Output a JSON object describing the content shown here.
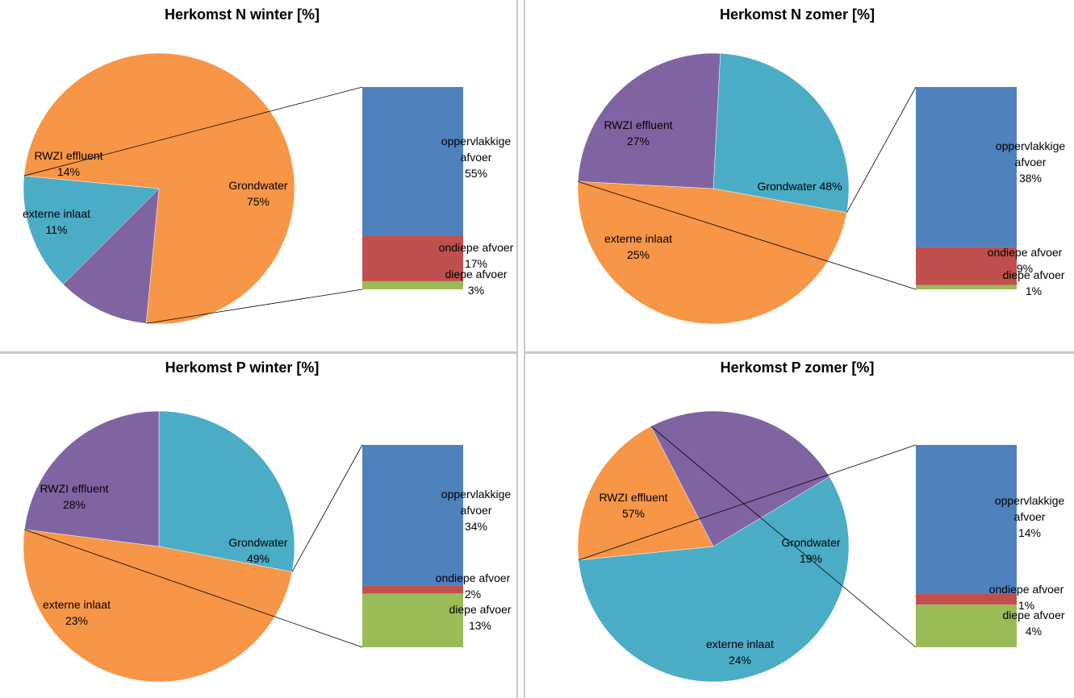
{
  "chart_data": [
    {
      "type": "bar-of-pie",
      "title": "Herkomst N winter [%]",
      "pie": [
        {
          "label": "RWZI effluent",
          "value": 14,
          "color": "#4bacc6"
        },
        {
          "label": "Grondwater",
          "value": 75,
          "color": "#f79646"
        },
        {
          "label": "externe inlaat",
          "value": 11,
          "color": "#8064a2"
        }
      ],
      "pie_label_style": [
        "two-line",
        "two-line",
        "two-line"
      ],
      "bar": [
        {
          "label": "oppervlakkige afvoer",
          "value": 55,
          "color": "#4f81bd"
        },
        {
          "label": "ondiepe afvoer",
          "value": 17,
          "color": "#c0504d"
        },
        {
          "label": "diepe afvoer",
          "value": 3,
          "color": "#9bbb59"
        }
      ],
      "bar_source": "Grondwater"
    },
    {
      "type": "bar-of-pie",
      "title": "Herkomst N zomer [%]",
      "pie": [
        {
          "label": "RWZI effluent",
          "value": 27,
          "color": "#4bacc6"
        },
        {
          "label": "Grondwater",
          "value": 48,
          "color": "#f79646"
        },
        {
          "label": "externe inlaat",
          "value": 25,
          "color": "#8064a2"
        }
      ],
      "pie_label_style": [
        "two-line",
        "one-line",
        "two-line"
      ],
      "bar": [
        {
          "label": "oppervlakkige afvoer",
          "value": 38,
          "color": "#4f81bd"
        },
        {
          "label": "ondiepe afvoer",
          "value": 9,
          "color": "#c0504d"
        },
        {
          "label": "diepe afvoer",
          "value": 1,
          "color": "#9bbb59"
        }
      ],
      "bar_source": "Grondwater"
    },
    {
      "type": "bar-of-pie",
      "title": "Herkomst P winter [%]",
      "pie": [
        {
          "label": "RWZI effluent",
          "value": 28,
          "color": "#4bacc6"
        },
        {
          "label": "Grondwater",
          "value": 49,
          "color": "#f79646"
        },
        {
          "label": "externe inlaat",
          "value": 23,
          "color": "#8064a2"
        }
      ],
      "pie_label_style": [
        "two-line",
        "two-line",
        "two-line"
      ],
      "bar": [
        {
          "label": "oppervlakkige afvoer",
          "value": 34,
          "color": "#4f81bd"
        },
        {
          "label": "ondiepe afvoer",
          "value": 2,
          "color": "#c0504d"
        },
        {
          "label": "diepe afvoer",
          "value": 13,
          "color": "#9bbb59"
        }
      ],
      "bar_source": "Grondwater"
    },
    {
      "type": "bar-of-pie",
      "title": "Herkomst P zomer [%]",
      "pie": [
        {
          "label": "RWZI effluent",
          "value": 57,
          "color": "#4bacc6"
        },
        {
          "label": "Grondwater",
          "value": 19,
          "color": "#f79646"
        },
        {
          "label": "externe inlaat",
          "value": 24,
          "color": "#8064a2"
        }
      ],
      "pie_label_style": [
        "two-line",
        "two-line",
        "two-line"
      ],
      "bar": [
        {
          "label": "oppervlakkige afvoer",
          "value": 14,
          "color": "#4f81bd"
        },
        {
          "label": "ondiepe afvoer",
          "value": 1,
          "color": "#c0504d"
        },
        {
          "label": "diepe afvoer",
          "value": 4,
          "color": "#9bbb59"
        }
      ],
      "bar_source": "Grondwater"
    }
  ]
}
